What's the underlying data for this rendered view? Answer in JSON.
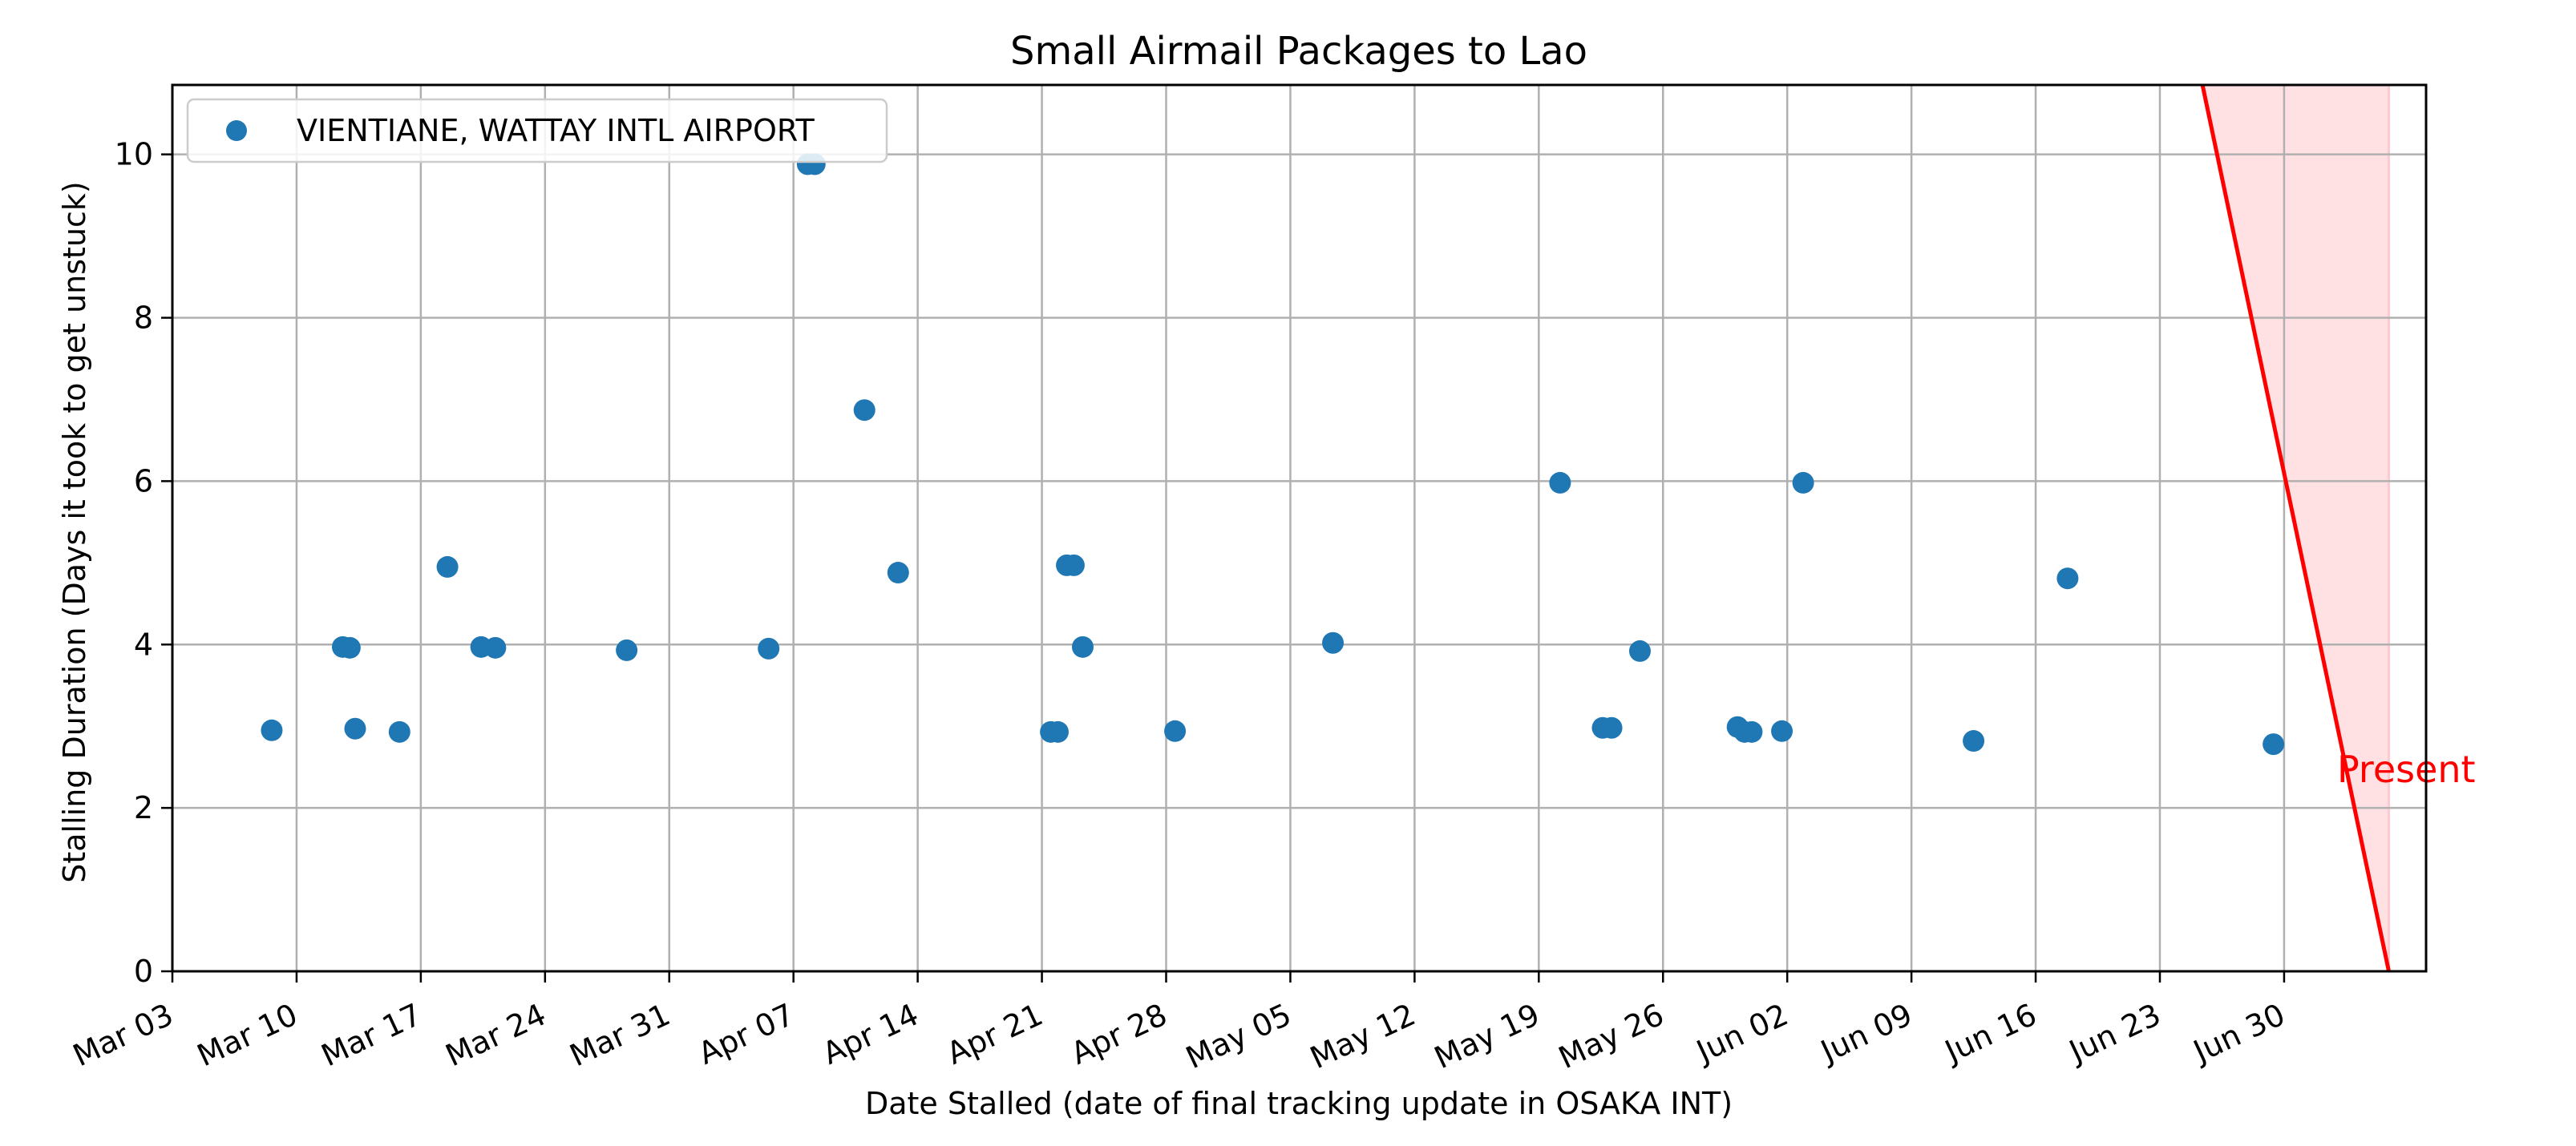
{
  "chart_data": {
    "type": "scatter",
    "title": "Small Airmail Packages to Lao",
    "xlabel": "Date Stalled (date of final tracking update in OSAKA INT)",
    "ylabel": "Stalling Duration (Days it took to get unstuck)",
    "x_range_days": [
      0,
      127
    ],
    "x_ticks": [
      {
        "day": 0,
        "label": "Mar 03"
      },
      {
        "day": 7,
        "label": "Mar 10"
      },
      {
        "day": 14,
        "label": "Mar 17"
      },
      {
        "day": 21,
        "label": "Mar 24"
      },
      {
        "day": 28,
        "label": "Mar 31"
      },
      {
        "day": 35,
        "label": "Apr 07"
      },
      {
        "day": 42,
        "label": "Apr 14"
      },
      {
        "day": 49,
        "label": "Apr 21"
      },
      {
        "day": 56,
        "label": "Apr 28"
      },
      {
        "day": 63,
        "label": "May 05"
      },
      {
        "day": 70,
        "label": "May 12"
      },
      {
        "day": 77,
        "label": "May 19"
      },
      {
        "day": 84,
        "label": "May 26"
      },
      {
        "day": 91,
        "label": "Jun 02"
      },
      {
        "day": 98,
        "label": "Jun 09"
      },
      {
        "day": 105,
        "label": "Jun 16"
      },
      {
        "day": 112,
        "label": "Jun 23"
      },
      {
        "day": 119,
        "label": "Jun 30"
      }
    ],
    "ylim": [
      0,
      10.85
    ],
    "y_ticks": [
      0,
      2,
      4,
      6,
      8,
      10
    ],
    "grid": true,
    "legend_position": "top-left",
    "series": [
      {
        "name": "VIENTIANE, WATTAY INTL AIRPORT",
        "color": "#1f77b4",
        "points": [
          {
            "x": 5.6,
            "y": 2.95
          },
          {
            "x": 9.6,
            "y": 3.97
          },
          {
            "x": 10.0,
            "y": 3.96
          },
          {
            "x": 10.3,
            "y": 2.97
          },
          {
            "x": 12.8,
            "y": 2.93
          },
          {
            "x": 15.5,
            "y": 4.95
          },
          {
            "x": 17.4,
            "y": 3.97
          },
          {
            "x": 18.2,
            "y": 3.96
          },
          {
            "x": 25.6,
            "y": 3.93
          },
          {
            "x": 33.6,
            "y": 3.95
          },
          {
            "x": 35.8,
            "y": 9.88
          },
          {
            "x": 36.2,
            "y": 9.88
          },
          {
            "x": 39.0,
            "y": 6.87
          },
          {
            "x": 40.9,
            "y": 4.88
          },
          {
            "x": 49.5,
            "y": 2.93
          },
          {
            "x": 49.9,
            "y": 2.93
          },
          {
            "x": 50.4,
            "y": 4.97
          },
          {
            "x": 50.8,
            "y": 4.97
          },
          {
            "x": 51.3,
            "y": 3.97
          },
          {
            "x": 56.5,
            "y": 2.94
          },
          {
            "x": 65.4,
            "y": 4.02
          },
          {
            "x": 78.2,
            "y": 5.98
          },
          {
            "x": 80.6,
            "y": 2.98
          },
          {
            "x": 81.1,
            "y": 2.98
          },
          {
            "x": 82.7,
            "y": 3.92
          },
          {
            "x": 88.2,
            "y": 2.99
          },
          {
            "x": 88.6,
            "y": 2.93
          },
          {
            "x": 89.0,
            "y": 2.93
          },
          {
            "x": 90.7,
            "y": 2.94
          },
          {
            "x": 91.9,
            "y": 5.98
          },
          {
            "x": 101.5,
            "y": 2.82
          },
          {
            "x": 106.8,
            "y": 4.81
          },
          {
            "x": 118.4,
            "y": 2.78
          }
        ]
      }
    ],
    "present_marker": {
      "label": "Present",
      "color": "#ff0000",
      "fill": "#ffe1e4",
      "line_start": {
        "x": 114.4,
        "y": 10.85
      },
      "line_end": {
        "x": 124.9,
        "y": 0
      },
      "shade_right_x": 124.9
    }
  }
}
